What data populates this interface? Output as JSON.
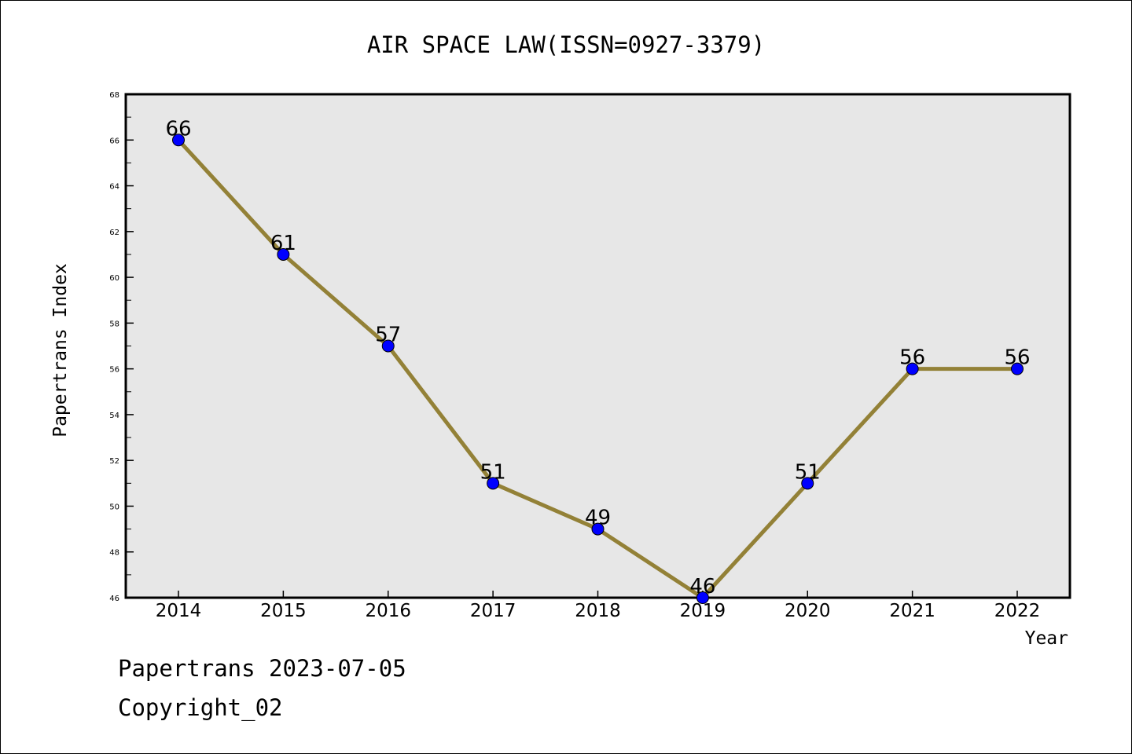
{
  "chart_data": {
    "type": "line",
    "title": "AIR SPACE LAW(ISSN=0927-3379)",
    "xlabel": "Year",
    "ylabel": "Papertrans Index",
    "categories": [
      "2014",
      "2015",
      "2016",
      "2017",
      "2018",
      "2019",
      "2020",
      "2021",
      "2022"
    ],
    "values": [
      66,
      61,
      57,
      51,
      49,
      46,
      51,
      56,
      56
    ],
    "data_labels": [
      "66",
      "61",
      "57",
      "51",
      "49",
      "46",
      "51",
      "56",
      "56"
    ],
    "ylim": [
      46,
      68
    ],
    "y_ticks": [
      "46",
      "48",
      "50",
      "52",
      "54",
      "56",
      "58",
      "60",
      "62",
      "64",
      "66",
      "68"
    ],
    "grid": false,
    "legend": "none",
    "colors": {
      "line": "#938137",
      "marker": "#0000ff",
      "plot_background": "#e7e7e7",
      "axes": "#000000"
    }
  },
  "footer": {
    "line1": "Papertrans 2023-07-05",
    "line2": "Copyright_02"
  }
}
